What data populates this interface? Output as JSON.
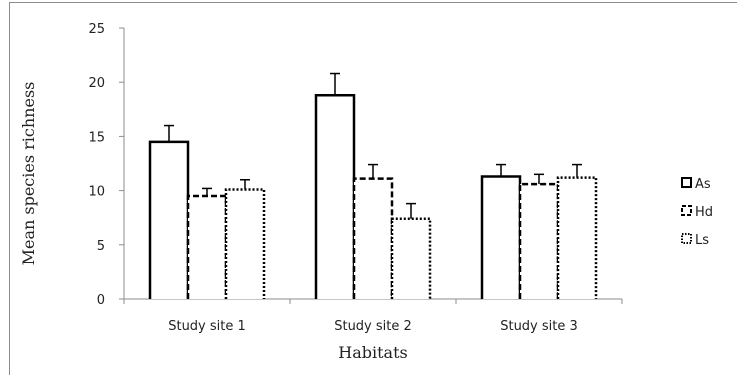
{
  "chart_data": {
    "type": "bar",
    "title": "",
    "xlabel": "Habitats",
    "ylabel": "Mean species richness",
    "categories": [
      "Study site 1",
      "Study site 2",
      "Study site 3"
    ],
    "ylim": [
      0,
      25
    ],
    "yticks": [
      0,
      5,
      10,
      15,
      20,
      25
    ],
    "grid": false,
    "legend_position": "right",
    "series": [
      {
        "name": "As",
        "values": [
          14.5,
          18.8,
          11.3
        ],
        "errors": [
          1.5,
          2.0,
          1.1
        ],
        "style": "solid"
      },
      {
        "name": "Hd",
        "values": [
          9.5,
          11.1,
          10.6
        ],
        "errors": [
          0.7,
          1.3,
          0.9
        ],
        "style": "dashed"
      },
      {
        "name": "Ls",
        "values": [
          10.1,
          7.4,
          11.2
        ],
        "errors": [
          0.9,
          1.4,
          1.2
        ],
        "style": "dotted"
      }
    ],
    "colors": {
      "bar_fill": "#ffffff",
      "bar_stroke": "#000000",
      "axis": "#8c8c8c"
    }
  }
}
